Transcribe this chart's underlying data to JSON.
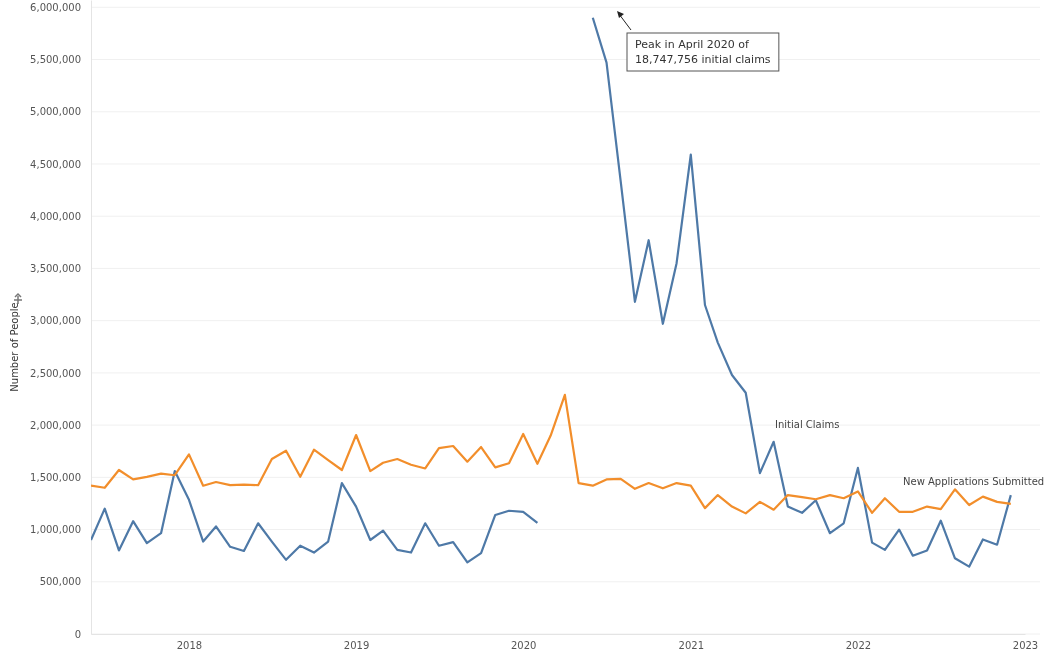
{
  "chart_data": {
    "type": "line",
    "ylabel": "Number of People",
    "x": [
      "2017-06",
      "2017-07",
      "2017-08",
      "2017-09",
      "2017-10",
      "2017-11",
      "2017-12",
      "2018-01",
      "2018-02",
      "2018-03",
      "2018-04",
      "2018-05",
      "2018-06",
      "2018-07",
      "2018-08",
      "2018-09",
      "2018-10",
      "2018-11",
      "2018-12",
      "2019-01",
      "2019-02",
      "2019-03",
      "2019-04",
      "2019-05",
      "2019-06",
      "2019-07",
      "2019-08",
      "2019-09",
      "2019-10",
      "2019-11",
      "2019-12",
      "2020-01",
      "2020-02",
      "2020-03",
      "2020-04",
      "2020-05",
      "2020-06",
      "2020-07",
      "2020-08",
      "2020-09",
      "2020-10",
      "2020-11",
      "2020-12",
      "2021-01",
      "2021-02",
      "2021-03",
      "2021-04",
      "2021-05",
      "2021-06",
      "2021-07",
      "2021-08",
      "2021-09",
      "2021-10",
      "2021-11",
      "2021-12",
      "2022-01",
      "2022-02",
      "2022-03",
      "2022-04",
      "2022-05",
      "2022-06",
      "2022-07",
      "2022-08",
      "2022-09",
      "2022-10",
      "2022-11",
      "2022-12"
    ],
    "series": [
      {
        "name": "Initial Claims",
        "color": "#4e79a7",
        "values": [
          900000,
          1200000,
          800000,
          1080000,
          870000,
          965000,
          1560000,
          1285000,
          885000,
          1030000,
          835000,
          795000,
          1060000,
          885000,
          710000,
          845000,
          780000,
          885000,
          1445000,
          1220000,
          900000,
          990000,
          805000,
          780000,
          1060000,
          845000,
          880000,
          685000,
          775000,
          1140000,
          1180000,
          1170000,
          1065000,
          null,
          null,
          null,
          5900000,
          5470000,
          4330000,
          3180000,
          3770000,
          2970000,
          3550000,
          4590000,
          3150000,
          2790000,
          2480000,
          2310000,
          1540000,
          1840000,
          1220000,
          1160000,
          1280000,
          965000,
          1060000,
          1590000,
          875000,
          805000,
          1000000,
          750000,
          800000,
          1085000,
          725000,
          645000,
          905000,
          855000,
          1330000
        ]
      },
      {
        "name": "New Applications Submitted",
        "color": "#f28e2b",
        "values": [
          1420000,
          1400000,
          1570000,
          1480000,
          1505000,
          1535000,
          1520000,
          1720000,
          1420000,
          1455000,
          1425000,
          1430000,
          1425000,
          1675000,
          1755000,
          1505000,
          1765000,
          1665000,
          1570000,
          1905000,
          1560000,
          1640000,
          1675000,
          1620000,
          1585000,
          1780000,
          1800000,
          1650000,
          1790000,
          1595000,
          1635000,
          1915000,
          1630000,
          1900000,
          2290000,
          1445000,
          1420000,
          1480000,
          1485000,
          1390000,
          1445000,
          1395000,
          1445000,
          1420000,
          1205000,
          1330000,
          1220000,
          1155000,
          1265000,
          1190000,
          1330000,
          1310000,
          1290000,
          1330000,
          1300000,
          1365000,
          1160000,
          1300000,
          1170000,
          1170000,
          1220000,
          1195000,
          1385000,
          1235000,
          1315000,
          1265000,
          1245000
        ]
      }
    ],
    "xlim": [
      "2017-06-01",
      "2023-01-01"
    ],
    "xticks": [
      {
        "value": "2018-01-01",
        "label": "2018"
      },
      {
        "value": "2019-01-01",
        "label": "2019"
      },
      {
        "value": "2020-01-01",
        "label": "2020"
      },
      {
        "value": "2021-01-01",
        "label": "2021"
      },
      {
        "value": "2022-01-01",
        "label": "2022"
      },
      {
        "value": "2023-01-01",
        "label": "2023"
      }
    ],
    "ylim": [
      0,
      6070000
    ],
    "yticks": [
      {
        "value": 0,
        "label": "0"
      },
      {
        "value": 500000,
        "label": "500,000"
      },
      {
        "value": 1000000,
        "label": "1,000,000"
      },
      {
        "value": 1500000,
        "label": "1,500,000"
      },
      {
        "value": 2000000,
        "label": "2,000,000"
      },
      {
        "value": 2500000,
        "label": "2,500,000"
      },
      {
        "value": 3000000,
        "label": "3,000,000"
      },
      {
        "value": 3500000,
        "label": "3,500,000"
      },
      {
        "value": 4000000,
        "label": "4,000,000"
      },
      {
        "value": 4500000,
        "label": "4,500,000"
      },
      {
        "value": 5000000,
        "label": "5,000,000"
      },
      {
        "value": 5500000,
        "label": "5,500,000"
      },
      {
        "value": 6000000,
        "label": "6,000,000"
      }
    ],
    "grid": "y",
    "legend": false,
    "marker": "none",
    "line_style": "solid",
    "annotations": [
      "Peak in April 2020 of 18,747,756 initial claims"
    ]
  }
}
